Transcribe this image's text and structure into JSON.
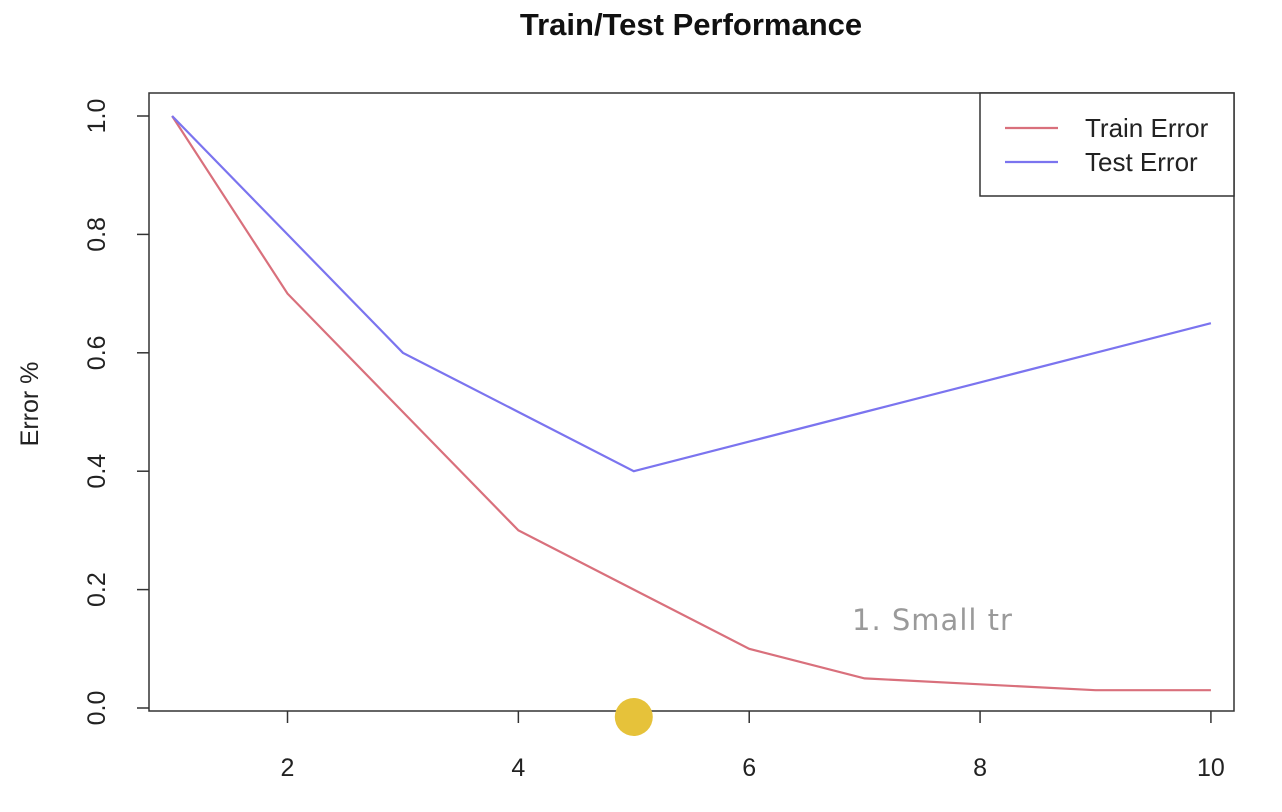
{
  "chart_data": {
    "type": "line",
    "title": "Train/Test Performance",
    "xlabel": "",
    "ylabel": "Error %",
    "xlim": [
      0.8,
      10.2
    ],
    "ylim": [
      0.0,
      1.0
    ],
    "x_ticks": [
      2,
      4,
      6,
      8,
      10
    ],
    "x_tick_labels": [
      "2",
      "4",
      "6",
      "8",
      "10"
    ],
    "y_ticks": [
      0.0,
      0.2,
      0.4,
      0.6,
      0.8,
      1.0
    ],
    "y_tick_labels": [
      "0.0",
      "0.2",
      "0.4",
      "0.6",
      "0.8",
      "1.0"
    ],
    "grid": false,
    "legend_position": "top-right",
    "x": [
      1,
      2,
      3,
      4,
      5,
      6,
      7,
      8,
      9,
      10
    ],
    "series": [
      {
        "name": "Train Error",
        "color": "#d9707c",
        "values": [
          1.0,
          0.7,
          0.5,
          0.3,
          0.2,
          0.1,
          0.05,
          0.04,
          0.03,
          0.03
        ]
      },
      {
        "name": "Test Error",
        "color": "#7b74ef",
        "values": [
          1.0,
          0.8,
          0.6,
          0.5,
          0.4,
          0.45,
          0.5,
          0.55,
          0.6,
          0.65
        ]
      }
    ],
    "annotation": "1. Small tr",
    "marker": {
      "x": 5,
      "y": 0.0,
      "color": "#e6c23a"
    }
  }
}
